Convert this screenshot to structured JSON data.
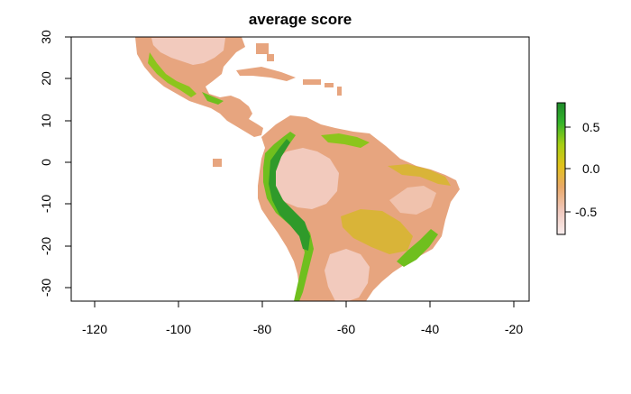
{
  "title": "average score",
  "x_ticks": [
    "-120",
    "-100",
    "-80",
    "-60",
    "-40",
    "-20"
  ],
  "y_ticks": [
    "30",
    "20",
    "10",
    "0",
    "-10",
    "-20",
    "-30"
  ],
  "legend": {
    "ticks": [
      "0.5",
      "0.0",
      "-0.5"
    ],
    "colors": [
      "#1f8a2a",
      "#33b42a",
      "#a7cf13",
      "#e2c21b",
      "#e9a969",
      "#f0c8bd",
      "#f9eeee"
    ]
  },
  "map_colors": {
    "base_land": "#e7a57f",
    "pale_interior": "#f2cabd",
    "mid_yellow": "#d9b438",
    "bright_green": "#6fbf1e",
    "dark_green": "#2f9a2a"
  },
  "chart_data": {
    "type": "heatmap",
    "title": "average score",
    "xlabel": "",
    "ylabel": "",
    "xlim": [
      -125,
      -18
    ],
    "ylim": [
      -33,
      30
    ],
    "color_scale": {
      "min": -0.75,
      "max": 0.8,
      "ticks": [
        0.5,
        0.0,
        -0.5
      ]
    }
  }
}
